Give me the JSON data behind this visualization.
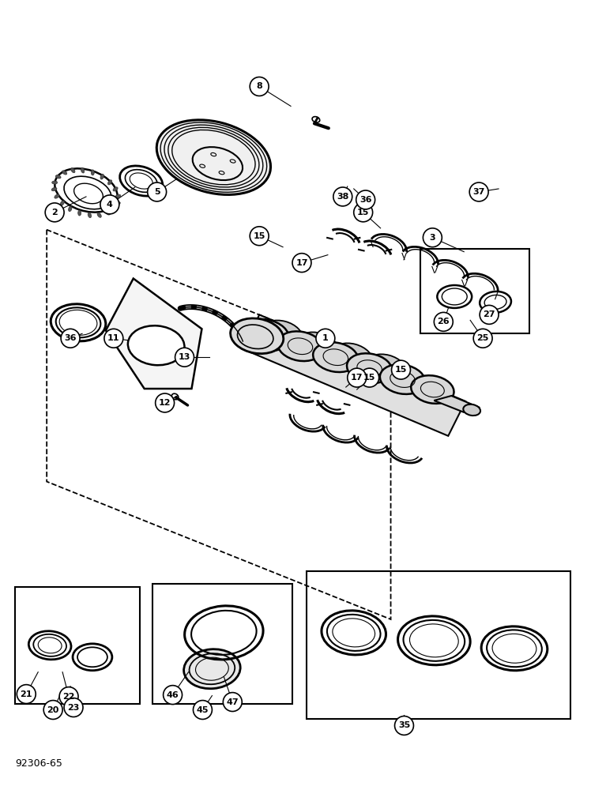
{
  "bg_color": "#ffffff",
  "line_color": "#000000",
  "label_fontsize": 9,
  "figsize": [
    7.48,
    10.0
  ],
  "dpi": 100,
  "footer_text": "92306-65"
}
